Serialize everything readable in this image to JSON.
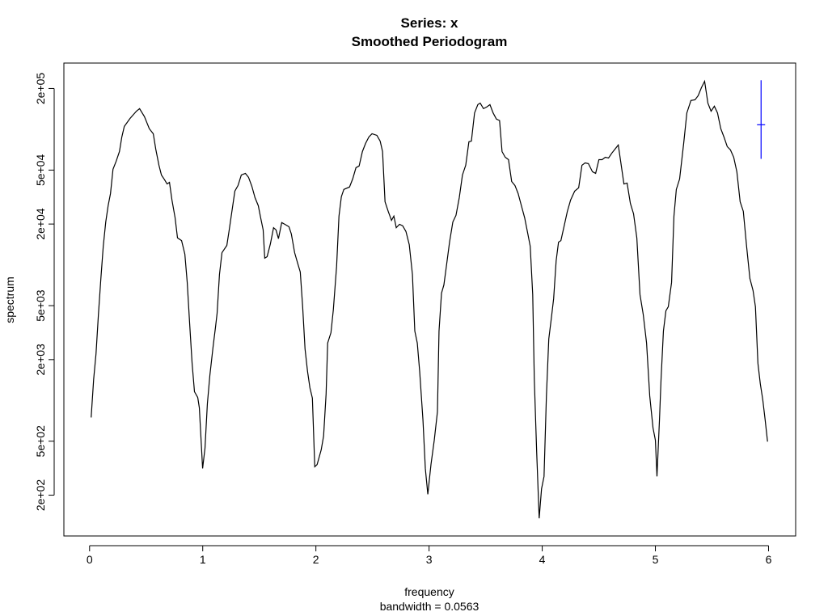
{
  "chart_data": {
    "type": "line",
    "title": "Series: x",
    "subtitle": "Smoothed Periodogram",
    "x_label": "frequency",
    "x_sublabel": "bandwidth = 0.0563",
    "y_label": "spectrum",
    "log_y": true,
    "color": "#000000",
    "xlim": [
      -0.227,
      6.2395
    ],
    "ylim": [
      100,
      308000
    ],
    "xticks": [
      0,
      1,
      2,
      3,
      4,
      5,
      6
    ],
    "yticks": [
      {
        "value": 200,
        "label": "2e+02"
      },
      {
        "value": 500,
        "label": "5e+02"
      },
      {
        "value": 2000,
        "label": "2e+03"
      },
      {
        "value": 5000,
        "label": "5e+03"
      },
      {
        "value": 20000,
        "label": "2e+04"
      },
      {
        "value": 50000,
        "label": "5e+04"
      },
      {
        "value": 200000,
        "label": "2e+05"
      }
    ],
    "x": [
      0.014,
      0.036,
      0.057,
      0.078,
      0.1,
      0.121,
      0.143,
      0.164,
      0.185,
      0.207,
      0.235,
      0.264,
      0.285,
      0.307,
      0.357,
      0.414,
      0.442,
      0.485,
      0.528,
      0.563,
      0.585,
      0.613,
      0.635,
      0.663,
      0.685,
      0.706,
      0.728,
      0.756,
      0.777,
      0.813,
      0.842,
      0.863,
      0.884,
      0.906,
      0.927,
      0.956,
      0.97,
      0.999,
      1.02,
      1.041,
      1.063,
      1.091,
      1.113,
      1.127,
      1.148,
      1.17,
      1.213,
      1.234,
      1.262,
      1.284,
      1.312,
      1.341,
      1.377,
      1.405,
      1.434,
      1.462,
      1.491,
      1.512,
      1.534,
      1.548,
      1.569,
      1.598,
      1.626,
      1.648,
      1.669,
      1.698,
      1.726,
      1.762,
      1.783,
      1.812,
      1.84,
      1.862,
      1.883,
      1.904,
      1.926,
      1.947,
      1.969,
      1.99,
      2.011,
      2.047,
      2.068,
      2.09,
      2.104,
      2.133,
      2.154,
      2.183,
      2.204,
      2.225,
      2.247,
      2.297,
      2.325,
      2.354,
      2.382,
      2.411,
      2.439,
      2.468,
      2.496,
      2.539,
      2.568,
      2.589,
      2.611,
      2.639,
      2.668,
      2.689,
      2.71,
      2.739,
      2.767,
      2.796,
      2.825,
      2.853,
      2.874,
      2.896,
      2.917,
      2.946,
      2.967,
      2.989,
      3.017,
      3.046,
      3.074,
      3.088,
      3.11,
      3.131,
      3.153,
      3.181,
      3.21,
      3.238,
      3.267,
      3.295,
      3.324,
      3.352,
      3.374,
      3.402,
      3.431,
      3.452,
      3.481,
      3.509,
      3.538,
      3.566,
      3.595,
      3.623,
      3.645,
      3.673,
      3.702,
      3.73,
      3.759,
      3.787,
      3.816,
      3.845,
      3.873,
      3.894,
      3.916,
      3.93,
      3.951,
      3.973,
      3.994,
      4.016,
      4.037,
      4.058,
      4.08,
      4.101,
      4.123,
      4.144,
      4.165,
      4.194,
      4.222,
      4.251,
      4.287,
      4.322,
      4.351,
      4.379,
      4.408,
      4.444,
      4.472,
      4.501,
      4.529,
      4.558,
      4.586,
      4.615,
      4.643,
      4.672,
      4.693,
      4.722,
      4.75,
      4.779,
      4.807,
      4.836,
      4.864,
      4.893,
      4.922,
      4.95,
      4.979,
      5.0,
      5.014,
      5.036,
      5.05,
      5.071,
      5.093,
      5.114,
      5.143,
      5.164,
      5.185,
      5.214,
      5.25,
      5.278,
      5.314,
      5.35,
      5.378,
      5.407,
      5.435,
      5.464,
      5.492,
      5.521,
      5.549,
      5.578,
      5.606,
      5.635,
      5.663,
      5.692,
      5.72,
      5.749,
      5.777,
      5.806,
      5.835,
      5.863,
      5.884,
      5.906,
      5.927,
      5.949,
      5.97,
      5.991
    ],
    "values": [
      748,
      1430,
      2210,
      4280,
      7940,
      13700,
      20700,
      27300,
      33600,
      50700,
      58100,
      68500,
      87700,
      105000,
      120000,
      136000,
      142000,
      124000,
      101000,
      92700,
      71400,
      54300,
      46000,
      42400,
      39500,
      40600,
      30100,
      22200,
      15800,
      15100,
      12000,
      7410,
      3730,
      1880,
      1160,
      1050,
      883,
      315,
      445,
      944,
      1530,
      2470,
      3480,
      4400,
      8510,
      12300,
      13900,
      18100,
      26200,
      35000,
      38500,
      46000,
      47300,
      44200,
      38000,
      31300,
      27300,
      22200,
      18100,
      11200,
      11500,
      14300,
      18800,
      18100,
      15600,
      20500,
      19900,
      19100,
      16900,
      12300,
      10200,
      8850,
      4910,
      2400,
      1640,
      1240,
      1040,
      324,
      337,
      432,
      546,
      1110,
      2650,
      3160,
      4650,
      9750,
      22900,
      31800,
      36000,
      37500,
      43000,
      52100,
      53600,
      68500,
      78700,
      87700,
      92700,
      90200,
      81800,
      68500,
      29200,
      24800,
      21300,
      22900,
      18800,
      19900,
      19400,
      17600,
      14100,
      8510,
      3250,
      2650,
      1640,
      718,
      315,
      203,
      337,
      509,
      824,
      3250,
      6190,
      7110,
      9750,
      14700,
      20700,
      23200,
      31300,
      46000,
      54300,
      80900,
      81800,
      132000,
      152000,
      156000,
      142000,
      146000,
      152000,
      132000,
      119000,
      116000,
      68500,
      62200,
      59700,
      41200,
      38500,
      33600,
      27300,
      22200,
      16900,
      13700,
      6030,
      1430,
      415,
      135,
      223,
      275,
      1080,
      2840,
      4000,
      5640,
      10700,
      14700,
      15100,
      19400,
      24800,
      30100,
      35000,
      37000,
      54300,
      56500,
      55800,
      48600,
      47300,
      59700,
      59700,
      62200,
      61400,
      66700,
      71400,
      76600,
      58100,
      39500,
      40100,
      28400,
      23800,
      15800,
      6030,
      4280,
      2650,
      1080,
      627,
      509,
      275,
      718,
      1430,
      3250,
      4580,
      4910,
      7410,
      22900,
      36000,
      43000,
      78700,
      132000,
      163000,
      165000,
      177000,
      203000,
      226000,
      156000,
      136000,
      148000,
      132000,
      101000,
      87700,
      74500,
      70500,
      62200,
      48600,
      29200,
      24800,
      13700,
      7940,
      6460,
      4910,
      1880,
      1330,
      1010,
      718,
      496
    ],
    "ci_bar": {
      "x": 5.934,
      "low": 60500,
      "mid": 108000,
      "high": 230000,
      "color": "#0000ff"
    }
  }
}
